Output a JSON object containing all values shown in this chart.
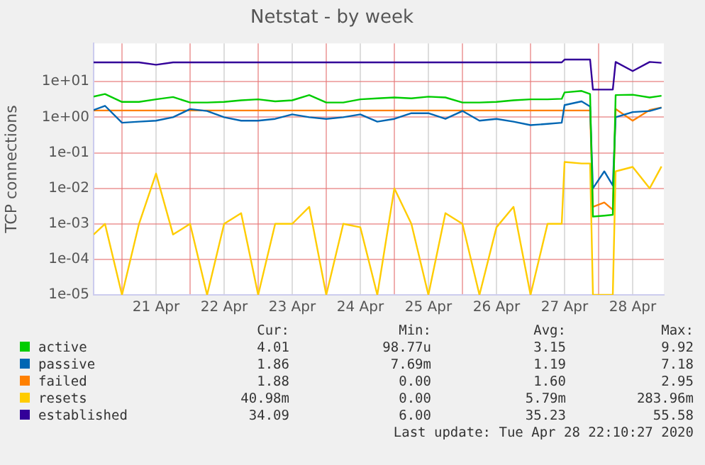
{
  "chart_data": {
    "type": "line",
    "title": "Netstat - by week",
    "ylabel": "TCP connections",
    "log": "y",
    "grid": true,
    "legend": "bottom",
    "marker": "none",
    "line_style": "solid",
    "x": [
      "2020-04-20T14:00",
      "2020-04-20T18:00",
      "2020-04-21T00:00",
      "2020-04-21T06:00",
      "2020-04-21T12:00",
      "2020-04-21T18:00",
      "2020-04-22T00:00",
      "2020-04-22T06:00",
      "2020-04-22T12:00",
      "2020-04-22T18:00",
      "2020-04-23T00:00",
      "2020-04-23T06:00",
      "2020-04-23T12:00",
      "2020-04-23T18:00",
      "2020-04-24T00:00",
      "2020-04-24T06:00",
      "2020-04-24T12:00",
      "2020-04-24T18:00",
      "2020-04-25T00:00",
      "2020-04-25T06:00",
      "2020-04-25T12:00",
      "2020-04-25T18:00",
      "2020-04-26T00:00",
      "2020-04-26T06:00",
      "2020-04-26T12:00",
      "2020-04-26T18:00",
      "2020-04-27T00:00",
      "2020-04-27T06:00",
      "2020-04-27T11:00",
      "2020-04-27T12:00",
      "2020-04-27T18:00",
      "2020-04-27T21:00",
      "2020-04-27T22:00",
      "2020-04-28T02:00",
      "2020-04-28T05:00",
      "2020-04-28T06:00",
      "2020-04-28T12:00",
      "2020-04-28T18:00",
      "2020-04-28T22:10"
    ],
    "xlim": [
      "2020-04-20T14:00",
      "2020-04-28T23:00"
    ],
    "xticks": [
      {
        "value": "2020-04-21T00:00",
        "label": null
      },
      {
        "value": "2020-04-21T12:00",
        "label": "21 Apr"
      },
      {
        "value": "2020-04-22T00:00",
        "label": null
      },
      {
        "value": "2020-04-22T12:00",
        "label": "22 Apr"
      },
      {
        "value": "2020-04-23T00:00",
        "label": null
      },
      {
        "value": "2020-04-23T12:00",
        "label": "23 Apr"
      },
      {
        "value": "2020-04-24T00:00",
        "label": null
      },
      {
        "value": "2020-04-24T12:00",
        "label": "24 Apr"
      },
      {
        "value": "2020-04-25T00:00",
        "label": null
      },
      {
        "value": "2020-04-25T12:00",
        "label": "25 Apr"
      },
      {
        "value": "2020-04-26T00:00",
        "label": null
      },
      {
        "value": "2020-04-26T12:00",
        "label": "26 Apr"
      },
      {
        "value": "2020-04-27T00:00",
        "label": null
      },
      {
        "value": "2020-04-27T12:00",
        "label": "27 Apr"
      },
      {
        "value": "2020-04-28T00:00",
        "label": null
      },
      {
        "value": "2020-04-28T12:00",
        "label": "28 Apr"
      }
    ],
    "ylim": [
      1e-05,
      120
    ],
    "yticks": [
      {
        "value": 1e-05,
        "label": "1e-05"
      },
      {
        "value": 0.0001,
        "label": "1e-04"
      },
      {
        "value": 0.001,
        "label": "1e-03"
      },
      {
        "value": 0.01,
        "label": "1e-02"
      },
      {
        "value": 0.1,
        "label": "1e-01"
      },
      {
        "value": 1,
        "label": "1e+00"
      },
      {
        "value": 10,
        "label": "1e+01"
      }
    ],
    "series": [
      {
        "name": "active",
        "color": "#00cc00",
        "values": [
          3.8,
          4.5,
          2.7,
          2.7,
          3.2,
          3.7,
          2.6,
          2.6,
          2.7,
          3.0,
          3.2,
          2.8,
          3.0,
          4.2,
          2.6,
          2.6,
          3.2,
          3.4,
          3.6,
          3.4,
          3.8,
          3.6,
          2.6,
          2.6,
          2.7,
          3.0,
          3.2,
          3.2,
          3.3,
          5.0,
          5.5,
          4.5,
          0.0016,
          0.0017,
          0.0018,
          4.2,
          4.3,
          3.6,
          4.01
        ]
      },
      {
        "name": "passive",
        "color": "#0066b3",
        "values": [
          1.6,
          2.1,
          0.7,
          0.75,
          0.8,
          1.0,
          1.7,
          1.5,
          1.0,
          0.8,
          0.8,
          0.9,
          1.2,
          1.0,
          0.9,
          1.0,
          1.2,
          0.75,
          0.9,
          1.3,
          1.3,
          0.9,
          1.5,
          0.8,
          0.9,
          0.75,
          0.6,
          0.65,
          0.7,
          2.2,
          2.8,
          2.0,
          0.01,
          0.03,
          0.012,
          1.0,
          1.4,
          1.5,
          1.86
        ]
      },
      {
        "name": "failed",
        "color": "#ff8000",
        "values": [
          1.55,
          1.55,
          1.55,
          1.55,
          1.55,
          1.55,
          1.55,
          1.55,
          1.55,
          1.55,
          1.55,
          1.55,
          1.55,
          1.55,
          1.55,
          1.55,
          1.55,
          1.55,
          1.55,
          1.55,
          1.55,
          1.55,
          1.55,
          1.55,
          1.55,
          1.55,
          1.55,
          1.55,
          1.55,
          1.55,
          1.55,
          1.55,
          0.003,
          0.004,
          0.0025,
          1.7,
          0.8,
          1.6,
          1.88
        ]
      },
      {
        "name": "resets",
        "color": "#ffcc00",
        "values": [
          0.0005,
          0.001,
          1e-05,
          0.001,
          0.026,
          0.0005,
          0.001,
          1e-05,
          0.001,
          0.002,
          1e-05,
          0.001,
          0.001,
          0.003,
          1e-05,
          0.001,
          0.0008,
          1e-05,
          0.01,
          0.001,
          1e-05,
          0.002,
          0.001,
          1e-05,
          0.0008,
          0.003,
          1e-05,
          0.001,
          0.001,
          0.055,
          0.05,
          0.05,
          1e-05,
          1e-05,
          1e-05,
          0.03,
          0.04,
          0.01,
          0.041
        ]
      },
      {
        "name": "established",
        "color": "#330099",
        "values": [
          35,
          35,
          35,
          35,
          30,
          35,
          35,
          35,
          35,
          35,
          35,
          35,
          35,
          35,
          35,
          35,
          35,
          35,
          35,
          35,
          35,
          35,
          35,
          35,
          35,
          35,
          35,
          35,
          35,
          42,
          42,
          42,
          6.0,
          6.0,
          6.0,
          36,
          20,
          36,
          34.09
        ]
      }
    ],
    "annotations": [
      "Cur:",
      "Min:",
      "Avg:",
      "Max:",
      "4.01",
      "98.77u",
      "3.15",
      "9.92",
      "1.86",
      "7.69m",
      "1.19",
      "7.18",
      "1.88",
      "0.00",
      "1.60",
      "2.95",
      "40.98m",
      "0.00",
      "5.79m",
      "283.96m",
      "34.09",
      "6.00",
      "35.23",
      "55.58",
      "Last update: Tue Apr 28 22:10:27 2020"
    ]
  }
}
